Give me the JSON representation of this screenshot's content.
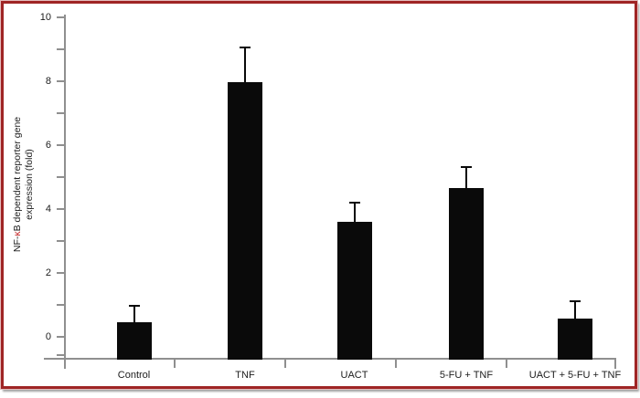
{
  "frame": {
    "border_color": "#9f2525"
  },
  "chart_data": {
    "type": "bar",
    "title": "",
    "categories": [
      "Control",
      "TNF",
      "UACT",
      "5-FU + TNF",
      "UACT + 5-FU + TNF"
    ],
    "values": [
      0.45,
      7.95,
      3.6,
      4.65,
      0.55
    ],
    "error_bar_tops": [
      0.95,
      9.05,
      4.2,
      5.3,
      1.1
    ],
    "error_caps": true,
    "ylabel_prefix": "NF-",
    "ylabel_kappa": "κ",
    "ylabel_line1_rest": "B dependent reporter gene",
    "ylabel_line2": "expression (fold)",
    "ylim": [
      0,
      10
    ],
    "ytick_labels": [
      "0",
      "2",
      "4",
      "6",
      "8",
      "10"
    ],
    "ytick_values": [
      0,
      2,
      4,
      6,
      8,
      10
    ],
    "minor_ytick_step": 1,
    "xlabel": "",
    "grid": false,
    "legend": "none",
    "bar_color": "#0a0a0a",
    "axis_color": "#8f8f8f",
    "kappa_color": "#c32222"
  }
}
